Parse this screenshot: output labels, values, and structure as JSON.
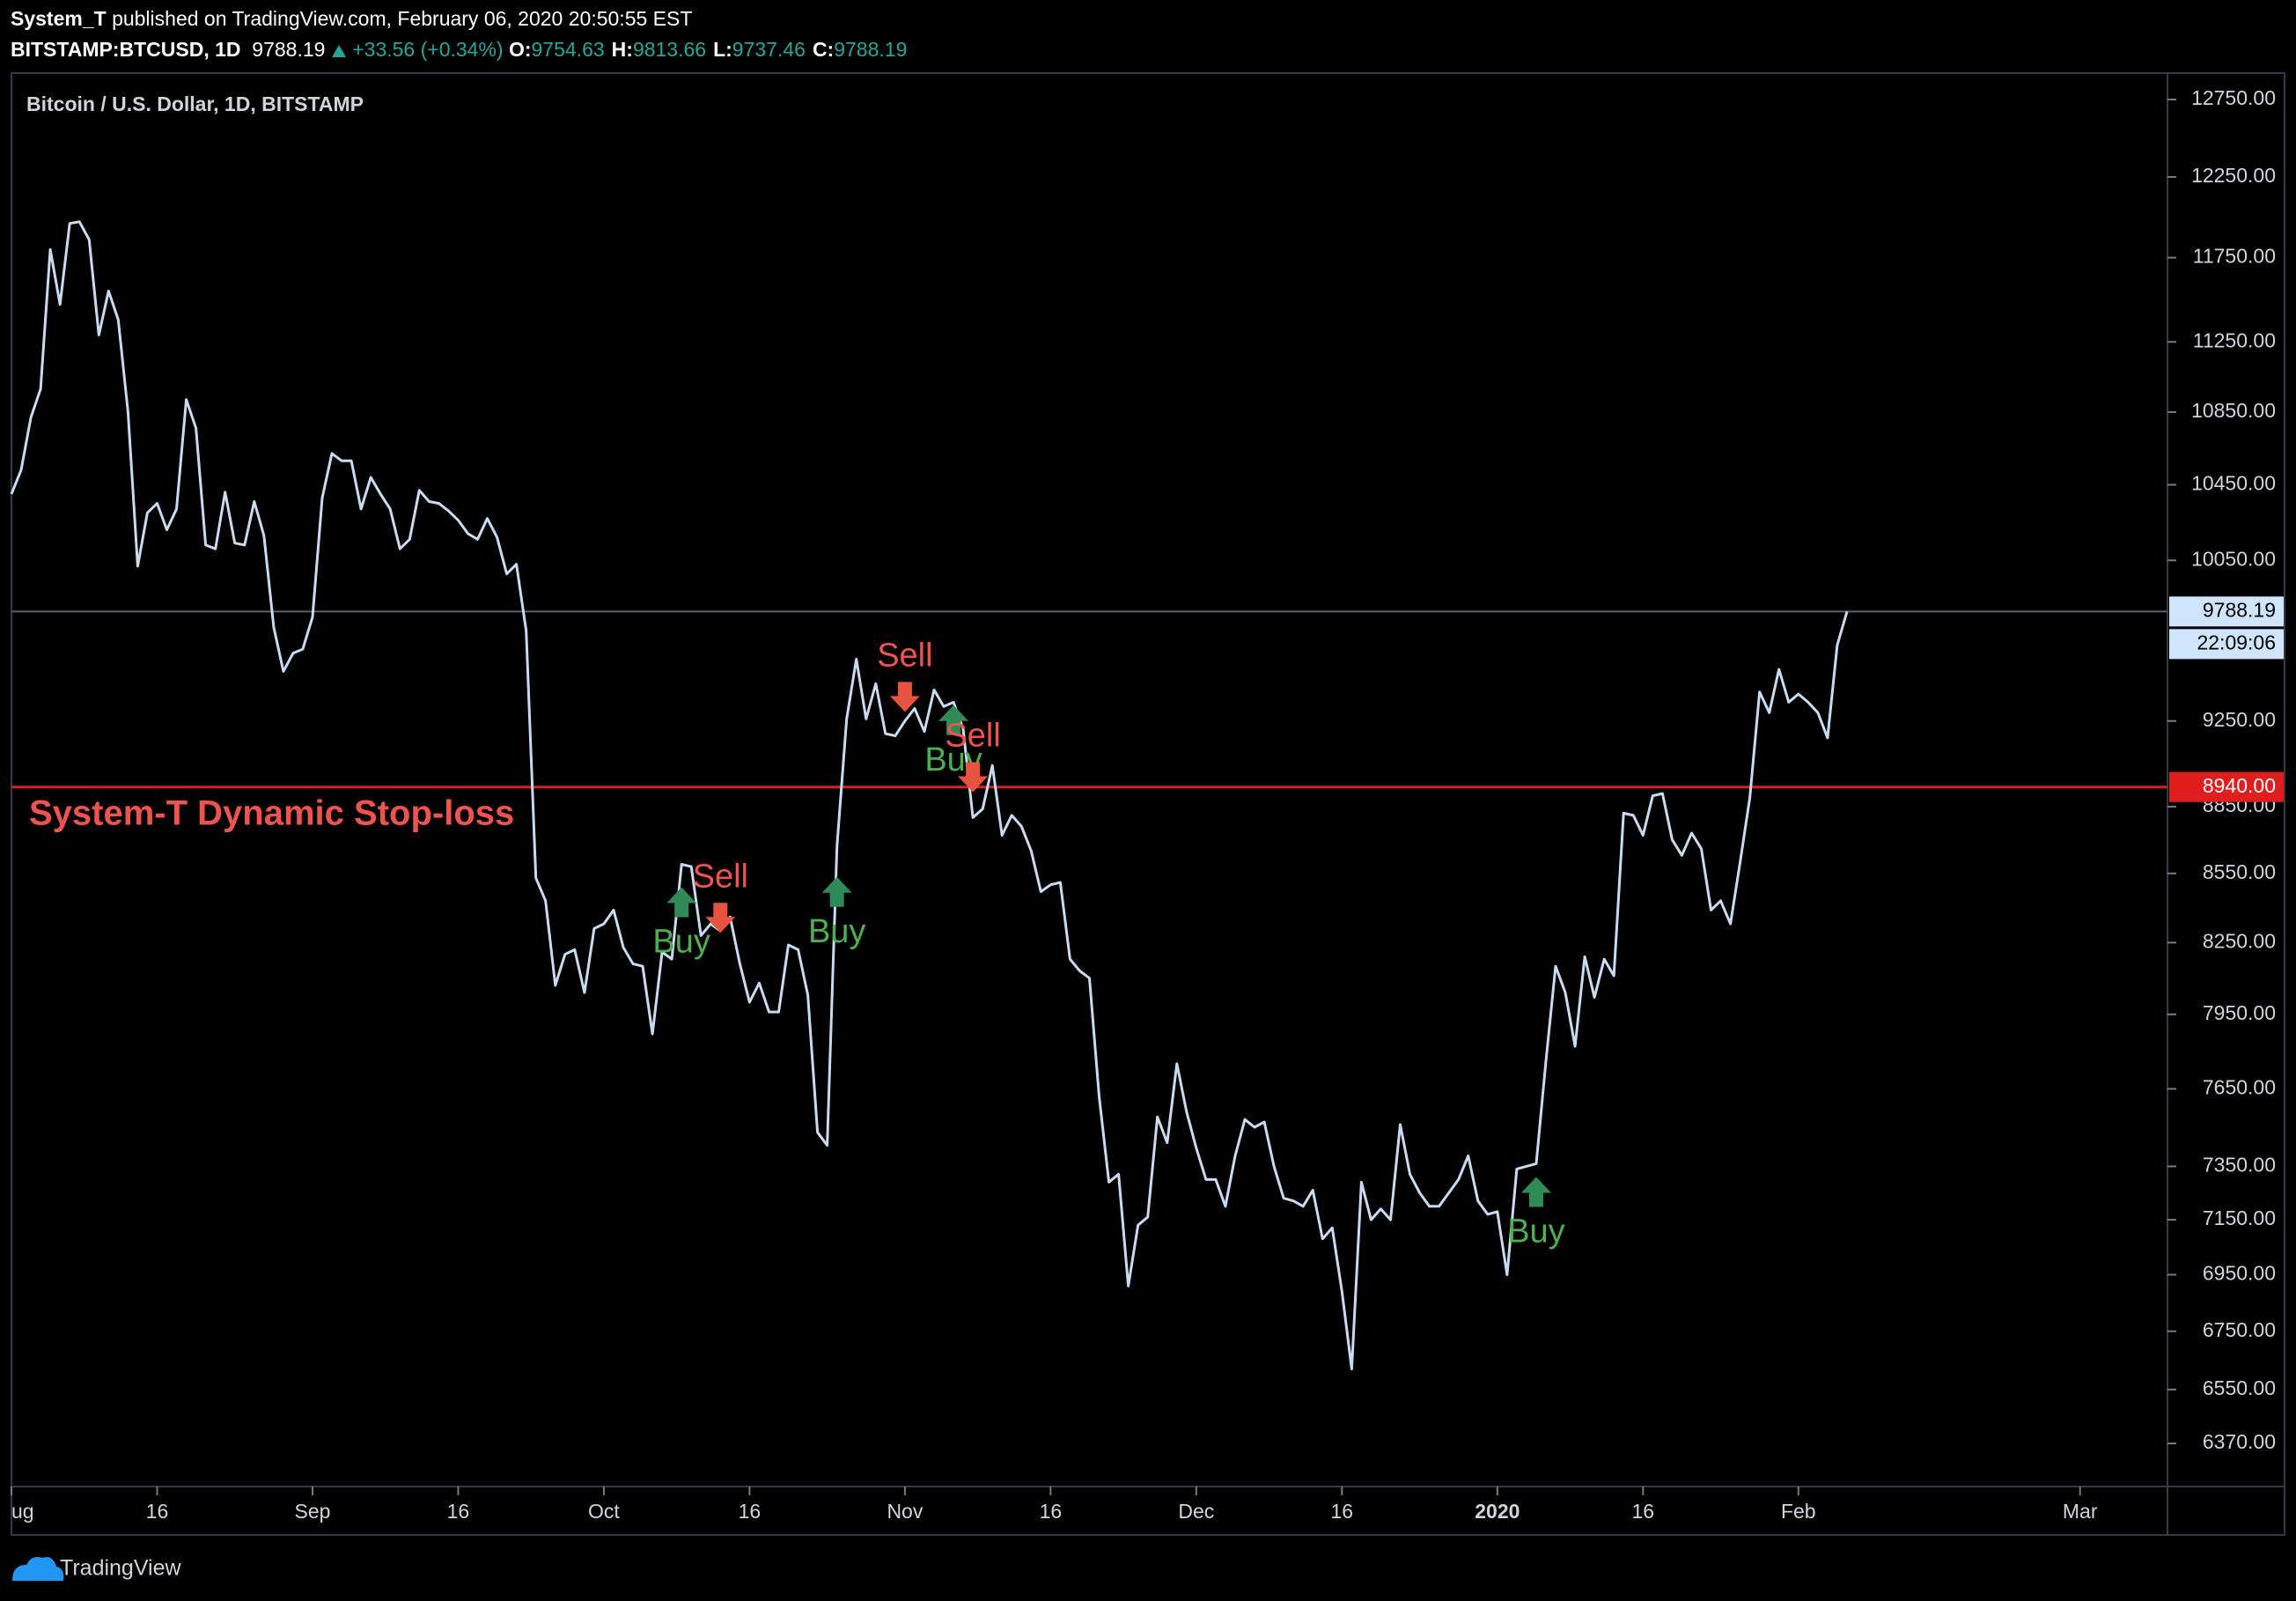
{
  "header": {
    "publisher": "System_T",
    "published": "published on TradingView.com, February 06, 2020 20:50:55 EST",
    "symbol": "BITSTAMP:BTCUSD, 1D",
    "last": "9788.19",
    "change": "+33.56 (+0.34%)",
    "ohlc": [
      {
        "label": "O:",
        "value": "9754.63"
      },
      {
        "label": "H:",
        "value": "9813.66"
      },
      {
        "label": "L:",
        "value": "9737.46"
      },
      {
        "label": "C:",
        "value": "9788.19"
      }
    ]
  },
  "footer": {
    "brand": "TradingView"
  },
  "chart_data": {
    "type": "line",
    "title": "Bitcoin / U.S. Dollar, 1D, BITSTAMP",
    "color": "#c8dcf0",
    "log_scale": true,
    "xlim": [
      "2019-08-01",
      "2020-03-10"
    ],
    "ylim": [
      6230,
      12925
    ],
    "xticks": [
      {
        "value": "2019-08-01",
        "label": "ug"
      },
      {
        "value": "2019-08-16",
        "label": "16"
      },
      {
        "value": "2019-09-01",
        "label": "Sep"
      },
      {
        "value": "2019-09-16",
        "label": "16"
      },
      {
        "value": "2019-10-01",
        "label": "Oct"
      },
      {
        "value": "2019-10-16",
        "label": "16"
      },
      {
        "value": "2019-11-01",
        "label": "Nov"
      },
      {
        "value": "2019-11-16",
        "label": "16"
      },
      {
        "value": "2019-12-01",
        "label": "Dec"
      },
      {
        "value": "2019-12-16",
        "label": "16"
      },
      {
        "value": "2020-01-01",
        "label": "2020"
      },
      {
        "value": "2020-01-16",
        "label": "16"
      },
      {
        "value": "2020-02-01",
        "label": "Feb"
      },
      {
        "value": "2020-03-01",
        "label": "Mar"
      }
    ],
    "yticks": [
      {
        "value": 12750,
        "label": "12750.00"
      },
      {
        "value": 12250,
        "label": "12250.00"
      },
      {
        "value": 11750,
        "label": "11750.00"
      },
      {
        "value": 11250,
        "label": "11250.00"
      },
      {
        "value": 10850,
        "label": "10850.00"
      },
      {
        "value": 10450,
        "label": "10450.00"
      },
      {
        "value": 10050,
        "label": "10050.00"
      },
      {
        "value": 9250,
        "label": "9250.00"
      },
      {
        "value": 8850,
        "label": "8850.00"
      },
      {
        "value": 8550,
        "label": "8550.00"
      },
      {
        "value": 8250,
        "label": "8250.00"
      },
      {
        "value": 7950,
        "label": "7950.00"
      },
      {
        "value": 7650,
        "label": "7650.00"
      },
      {
        "value": 7350,
        "label": "7350.00"
      },
      {
        "value": 7150,
        "label": "7150.00"
      },
      {
        "value": 6950,
        "label": "6950.00"
      },
      {
        "value": 6750,
        "label": "6750.00"
      },
      {
        "value": 6550,
        "label": "6550.00"
      },
      {
        "value": 6370,
        "label": "6370.00"
      }
    ],
    "last_line": {
      "value": 9788.19,
      "label": "9788.19",
      "countdown": "22:09:06",
      "color": "#5d606b"
    },
    "stop_loss": {
      "value": 8940,
      "label": "8940.00",
      "text": "System-T Dynamic Stop-loss",
      "color": "#e01e1e",
      "text_color": "#ef5350"
    },
    "annotations": [
      {
        "text": "Buy",
        "kind": "buy",
        "x": "2019-10-09",
        "y": 8420
      },
      {
        "text": "Sell",
        "kind": "sell",
        "x": "2019-10-13",
        "y": 8360
      },
      {
        "text": "Buy",
        "kind": "buy",
        "x": "2019-10-25",
        "y": 8465
      },
      {
        "text": "Sell",
        "kind": "sell",
        "x": "2019-11-01",
        "y": 9370
      },
      {
        "text": "Buy",
        "kind": "buy",
        "x": "2019-11-06",
        "y": 9250
      },
      {
        "text": "Sell",
        "kind": "sell",
        "x": "2019-11-08",
        "y": 8990
      },
      {
        "text": "Buy",
        "kind": "buy",
        "x": "2020-01-05",
        "y": 7250
      }
    ],
    "x": [
      "2019-08-01",
      "2019-08-02",
      "2019-08-03",
      "2019-08-04",
      "2019-08-05",
      "2019-08-06",
      "2019-08-07",
      "2019-08-08",
      "2019-08-09",
      "2019-08-10",
      "2019-08-11",
      "2019-08-12",
      "2019-08-13",
      "2019-08-14",
      "2019-08-15",
      "2019-08-16",
      "2019-08-17",
      "2019-08-18",
      "2019-08-19",
      "2019-08-20",
      "2019-08-21",
      "2019-08-22",
      "2019-08-23",
      "2019-08-24",
      "2019-08-25",
      "2019-08-26",
      "2019-08-27",
      "2019-08-28",
      "2019-08-29",
      "2019-08-30",
      "2019-08-31",
      "2019-09-01",
      "2019-09-02",
      "2019-09-03",
      "2019-09-04",
      "2019-09-05",
      "2019-09-06",
      "2019-09-07",
      "2019-09-08",
      "2019-09-09",
      "2019-09-10",
      "2019-09-11",
      "2019-09-12",
      "2019-09-13",
      "2019-09-14",
      "2019-09-15",
      "2019-09-16",
      "2019-09-17",
      "2019-09-18",
      "2019-09-19",
      "2019-09-20",
      "2019-09-21",
      "2019-09-22",
      "2019-09-23",
      "2019-09-24",
      "2019-09-25",
      "2019-09-26",
      "2019-09-27",
      "2019-09-28",
      "2019-09-29",
      "2019-09-30",
      "2019-10-01",
      "2019-10-02",
      "2019-10-03",
      "2019-10-04",
      "2019-10-05",
      "2019-10-06",
      "2019-10-07",
      "2019-10-08",
      "2019-10-09",
      "2019-10-10",
      "2019-10-11",
      "2019-10-12",
      "2019-10-13",
      "2019-10-14",
      "2019-10-15",
      "2019-10-16",
      "2019-10-17",
      "2019-10-18",
      "2019-10-19",
      "2019-10-20",
      "2019-10-21",
      "2019-10-22",
      "2019-10-23",
      "2019-10-24",
      "2019-10-25",
      "2019-10-26",
      "2019-10-27",
      "2019-10-28",
      "2019-10-29",
      "2019-10-30",
      "2019-10-31",
      "2019-11-01",
      "2019-11-02",
      "2019-11-03",
      "2019-11-04",
      "2019-11-05",
      "2019-11-06",
      "2019-11-07",
      "2019-11-08",
      "2019-11-09",
      "2019-11-10",
      "2019-11-11",
      "2019-11-12",
      "2019-11-13",
      "2019-11-14",
      "2019-11-15",
      "2019-11-16",
      "2019-11-17",
      "2019-11-18",
      "2019-11-19",
      "2019-11-20",
      "2019-11-21",
      "2019-11-22",
      "2019-11-23",
      "2019-11-24",
      "2019-11-25",
      "2019-11-26",
      "2019-11-27",
      "2019-11-28",
      "2019-11-29",
      "2019-11-30",
      "2019-12-01",
      "2019-12-02",
      "2019-12-03",
      "2019-12-04",
      "2019-12-05",
      "2019-12-06",
      "2019-12-07",
      "2019-12-08",
      "2019-12-09",
      "2019-12-10",
      "2019-12-11",
      "2019-12-12",
      "2019-12-13",
      "2019-12-14",
      "2019-12-15",
      "2019-12-16",
      "2019-12-17",
      "2019-12-18",
      "2019-12-19",
      "2019-12-20",
      "2019-12-21",
      "2019-12-22",
      "2019-12-23",
      "2019-12-24",
      "2019-12-25",
      "2019-12-26",
      "2019-12-27",
      "2019-12-28",
      "2019-12-29",
      "2019-12-30",
      "2019-12-31",
      "2020-01-01",
      "2020-01-02",
      "2020-01-03",
      "2020-01-04",
      "2020-01-05",
      "2020-01-06",
      "2020-01-07",
      "2020-01-08",
      "2020-01-09",
      "2020-01-10",
      "2020-01-11",
      "2020-01-12",
      "2020-01-13",
      "2020-01-14",
      "2020-01-15",
      "2020-01-16",
      "2020-01-17",
      "2020-01-18",
      "2020-01-19",
      "2020-01-20",
      "2020-01-21",
      "2020-01-22",
      "2020-01-23",
      "2020-01-24",
      "2020-01-25",
      "2020-01-26",
      "2020-01-27",
      "2020-01-28",
      "2020-01-29",
      "2020-01-30",
      "2020-01-31",
      "2020-02-01",
      "2020-02-02",
      "2020-02-03",
      "2020-02-04",
      "2020-02-05",
      "2020-02-06"
    ],
    "values": [
      10400,
      10530,
      10820,
      10980,
      11800,
      11470,
      11960,
      11970,
      11860,
      11290,
      11550,
      11380,
      10850,
      10020,
      10300,
      10350,
      10210,
      10320,
      10920,
      10760,
      10130,
      10110,
      10410,
      10140,
      10130,
      10360,
      10180,
      9710,
      9490,
      9580,
      9600,
      9760,
      10380,
      10620,
      10580,
      10580,
      10320,
      10490,
      10400,
      10320,
      10110,
      10160,
      10420,
      10360,
      10350,
      10310,
      10260,
      10190,
      10160,
      10270,
      10170,
      9980,
      10030,
      9690,
      8530,
      8430,
      8070,
      8200,
      8220,
      8040,
      8310,
      8330,
      8390,
      8230,
      8160,
      8150,
      7870,
      8210,
      8180,
      8590,
      8580,
      8280,
      8330,
      8300,
      8360,
      8160,
      8000,
      8080,
      7960,
      7960,
      8240,
      8220,
      8030,
      7480,
      7430,
      8670,
      9260,
      9550,
      9260,
      9430,
      9190,
      9180,
      9250,
      9310,
      9200,
      9400,
      9320,
      9340,
      9210,
      8800,
      8840,
      9040,
      8720,
      8810,
      8760,
      8650,
      8470,
      8500,
      8510,
      8180,
      8130,
      8100,
      7620,
      7290,
      7320,
      6910,
      7130,
      7160,
      7540,
      7440,
      7750,
      7560,
      7420,
      7300,
      7300,
      7200,
      7390,
      7530,
      7500,
      7520,
      7350,
      7230,
      7220,
      7200,
      7260,
      7080,
      7120,
      6890,
      6620,
      7290,
      7150,
      7190,
      7150,
      7510,
      7320,
      7250,
      7200,
      7200,
      7250,
      7300,
      7390,
      7220,
      7170,
      7180,
      6950,
      7340,
      7350,
      7360,
      7760,
      8150,
      8040,
      7820,
      8190,
      8020,
      8180,
      8110,
      8820,
      8810,
      8720,
      8900,
      8910,
      8700,
      8630,
      8730,
      8660,
      8390,
      8430,
      8330,
      8600,
      8890,
      9390,
      9290,
      9500,
      9340,
      9380,
      9340,
      9290,
      9170,
      9620,
      9788.19
    ]
  }
}
